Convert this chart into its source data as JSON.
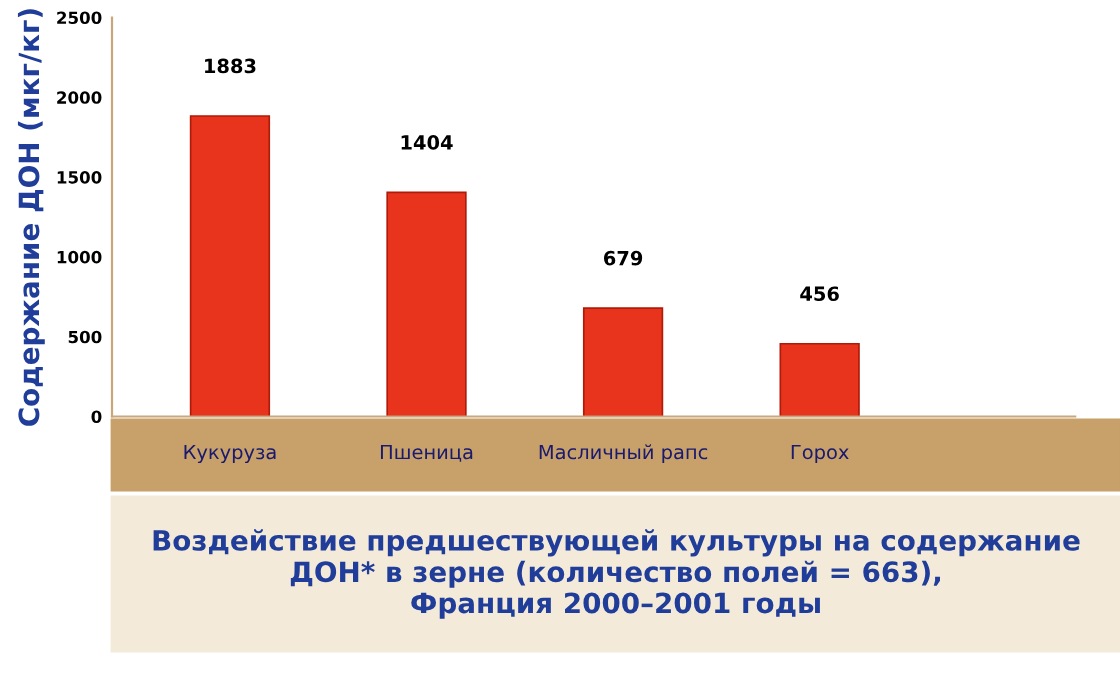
{
  "chart_data": {
    "type": "bar",
    "title": "Воздействие предшествующей культуры на содержание\nДОН* в зерне (количество полей = 663),\nФранция 2000–2001 годы",
    "ylabel": "Содержание ДОН (мкг/кг)",
    "categories": [
      "Кукуруза",
      "Пшеница",
      "Масличный рапс",
      "Горох"
    ],
    "values": [
      1883,
      1404,
      679,
      456
    ],
    "color": "#e8341c",
    "ylim": [
      0,
      2500
    ],
    "yticks": [
      0,
      500,
      1000,
      1500,
      2000,
      2500
    ],
    "data_labels": true,
    "grid": false
  }
}
